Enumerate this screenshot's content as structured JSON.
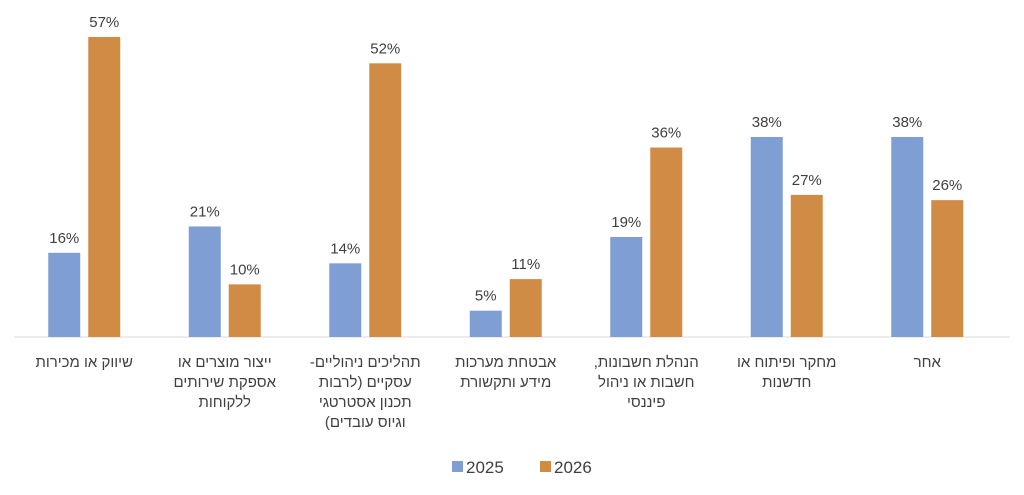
{
  "chart_data": {
    "type": "bar",
    "categories": [
      [
        "שיווק או מכירות"
      ],
      [
        "ייצור מוצרים או",
        "אספקת שירותים",
        "ללקוחות"
      ],
      [
        "תהליכים ניהוליים-",
        "עסקיים (לרבות",
        "תכנון אסטרטגי",
        "וגיוס עובדים)"
      ],
      [
        "אבטחת מערכות",
        "מידע ותקשורת"
      ],
      [
        "הנהלת חשבונות,",
        "חשבות או ניהול",
        "פיננסי"
      ],
      [
        "מחקר ופיתוח או",
        "חדשנות"
      ],
      [
        "אחר"
      ]
    ],
    "series": [
      {
        "name": "2025",
        "color": "#7f9fd4",
        "values": [
          16,
          21,
          14,
          5,
          19,
          38,
          38
        ],
        "labels": [
          "16%",
          "21%",
          "14%",
          "5%",
          "19%",
          "38%",
          "38%"
        ]
      },
      {
        "name": "2026",
        "color": "#d08b45",
        "values": [
          57,
          10,
          52,
          11,
          36,
          27,
          26
        ],
        "labels": [
          "57%",
          "10%",
          "52%",
          "11%",
          "36%",
          "27%",
          "26%"
        ]
      }
    ],
    "ylim": [
      0,
      60
    ],
    "grid": false,
    "legend_position": "bottom"
  }
}
